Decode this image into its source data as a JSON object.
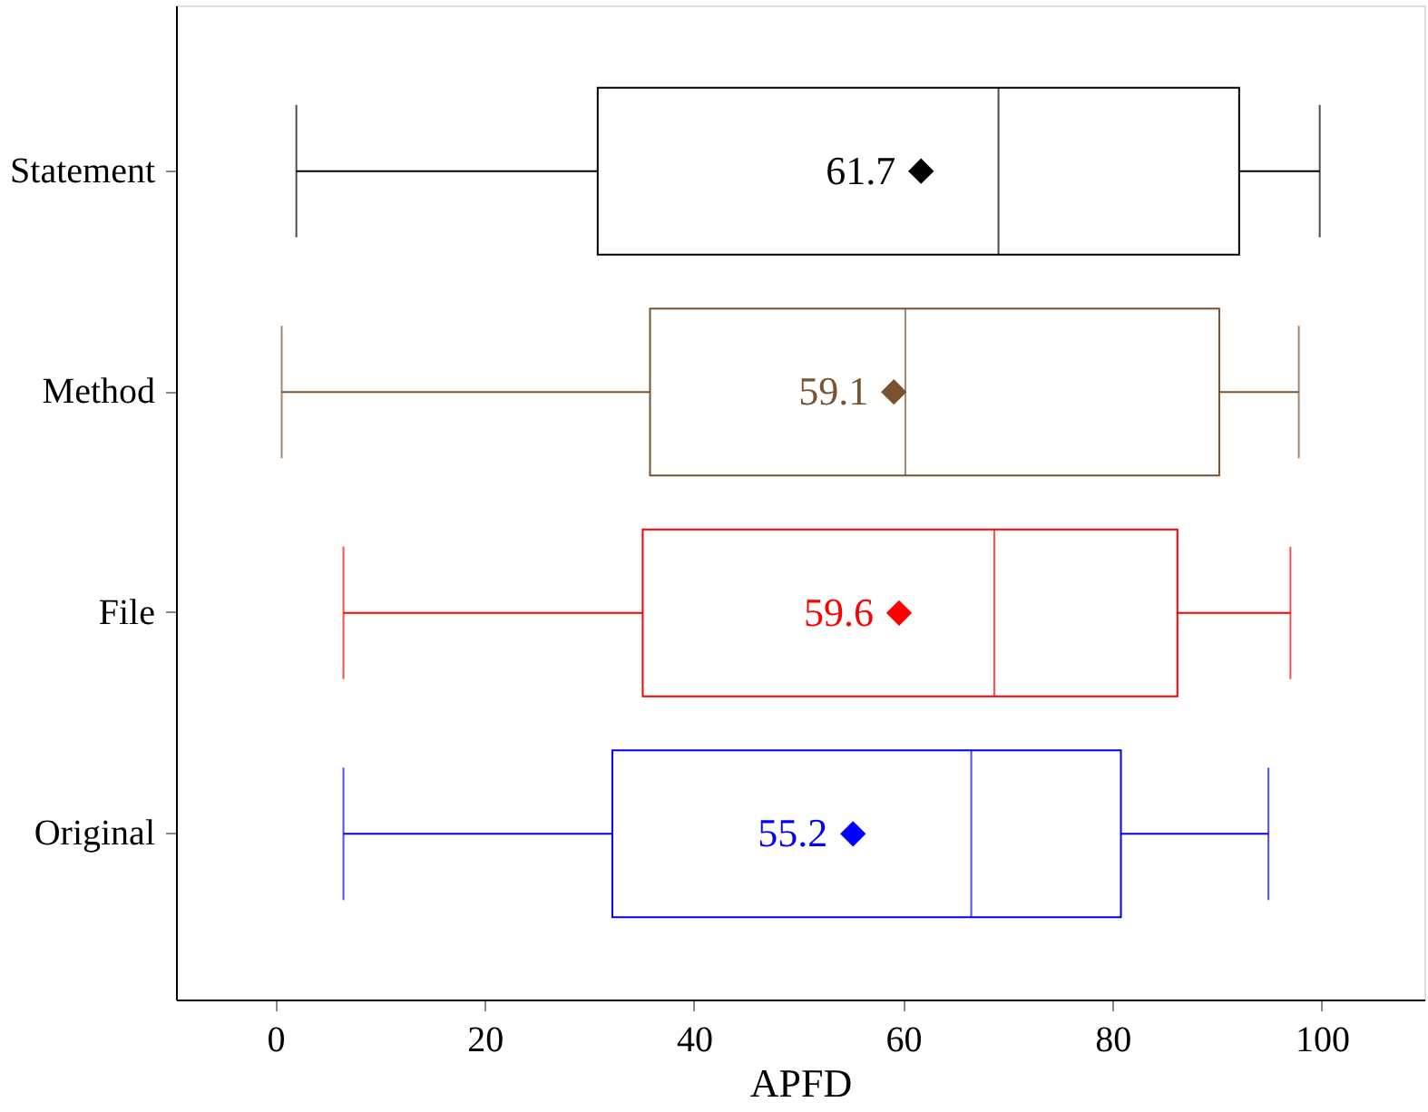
{
  "chart_data": {
    "type": "box",
    "orientation": "horizontal",
    "xlabel": "APFD",
    "categories": [
      "Statement",
      "Method",
      "File",
      "Original"
    ],
    "colors": [
      "#000000",
      "#7b5230",
      "#ff0000",
      "#0000ff"
    ],
    "boxes": [
      {
        "low": 2.0,
        "q1": 30.8,
        "median": 69.1,
        "q3": 92.1,
        "high": 99.8,
        "mean": 61.7
      },
      {
        "low": 0.6,
        "q1": 35.8,
        "median": 60.2,
        "q3": 90.2,
        "high": 97.8,
        "mean": 59.1
      },
      {
        "low": 6.5,
        "q1": 35.1,
        "median": 68.7,
        "q3": 86.2,
        "high": 97.0,
        "mean": 59.6
      },
      {
        "low": 6.5,
        "q1": 32.2,
        "median": 66.5,
        "q3": 80.8,
        "high": 94.9,
        "mean": 55.2
      }
    ],
    "xlim": [
      -9.5,
      109.8
    ],
    "xticks": [
      0,
      20,
      40,
      60,
      80,
      100
    ],
    "annotations": [
      "61.7",
      "59.1",
      "59.6",
      "55.2"
    ],
    "marker": "diamond",
    "grid": false,
    "legend": false
  }
}
